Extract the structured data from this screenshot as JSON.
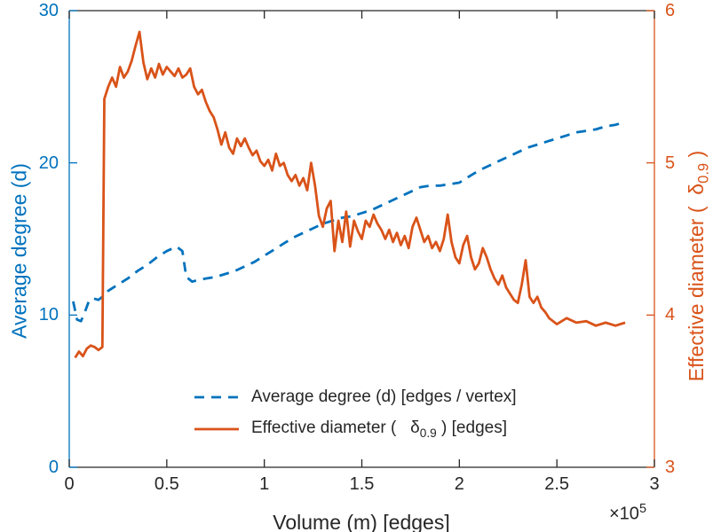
{
  "chart_data": {
    "type": "line",
    "title": "",
    "xlabel": "Volume (m) [edges]",
    "x_offset_parts": [
      {
        "t": "×10"
      },
      {
        "t": "5",
        "sup": true
      }
    ],
    "xlim": [
      0,
      3
    ],
    "x_ticks": [
      0,
      0.5,
      1,
      1.5,
      2,
      2.5,
      3
    ],
    "x_tick_labels": [
      "0",
      "0.5",
      "1",
      "1.5",
      "2",
      "2.5",
      "3"
    ],
    "grid": false,
    "frame_color": "#262626",
    "left_axis": {
      "label": "Average degree (d)",
      "color": "#0072BD",
      "ylim": [
        0,
        30
      ],
      "ticks": [
        0,
        10,
        20,
        30
      ],
      "tick_labels": [
        "0",
        "10",
        "20",
        "30"
      ]
    },
    "right_axis": {
      "label_parts": [
        {
          "t": "Effective diameter (  "
        },
        {
          "t": "δ"
        },
        {
          "t": "0.9",
          "sub": true
        },
        {
          "t": " )"
        }
      ],
      "color": "#D95319",
      "ylim": [
        3,
        6
      ],
      "ticks": [
        3,
        4,
        5,
        6
      ],
      "tick_labels": [
        "3",
        "4",
        "5",
        "6"
      ]
    },
    "series": [
      {
        "id": "average-degree",
        "name": "Average degree (d) [edges / vertex]",
        "axis": "left",
        "style": "dashed",
        "color": "#0072BD",
        "points": [
          [
            0.02,
            10.9
          ],
          [
            0.04,
            9.7
          ],
          [
            0.06,
            9.6
          ],
          [
            0.08,
            10.2
          ],
          [
            0.1,
            10.9
          ],
          [
            0.12,
            11.1
          ],
          [
            0.15,
            11.0
          ],
          [
            0.18,
            11.3
          ],
          [
            0.2,
            11.6
          ],
          [
            0.25,
            12.0
          ],
          [
            0.3,
            12.4
          ],
          [
            0.35,
            12.9
          ],
          [
            0.4,
            13.3
          ],
          [
            0.45,
            13.8
          ],
          [
            0.5,
            14.2
          ],
          [
            0.55,
            14.5
          ],
          [
            0.58,
            14.2
          ],
          [
            0.6,
            12.5
          ],
          [
            0.63,
            12.2
          ],
          [
            0.66,
            12.3
          ],
          [
            0.7,
            12.4
          ],
          [
            0.75,
            12.5
          ],
          [
            0.8,
            12.7
          ],
          [
            0.85,
            12.9
          ],
          [
            0.9,
            13.2
          ],
          [
            0.95,
            13.5
          ],
          [
            1.0,
            13.9
          ],
          [
            1.05,
            14.3
          ],
          [
            1.1,
            14.7
          ],
          [
            1.15,
            15.1
          ],
          [
            1.2,
            15.4
          ],
          [
            1.25,
            15.7
          ],
          [
            1.3,
            16.0
          ],
          [
            1.35,
            16.2
          ],
          [
            1.4,
            16.4
          ],
          [
            1.45,
            16.5
          ],
          [
            1.5,
            16.7
          ],
          [
            1.55,
            16.9
          ],
          [
            1.6,
            17.2
          ],
          [
            1.65,
            17.5
          ],
          [
            1.7,
            17.8
          ],
          [
            1.75,
            18.1
          ],
          [
            1.8,
            18.4
          ],
          [
            1.85,
            18.5
          ],
          [
            1.9,
            18.5
          ],
          [
            1.95,
            18.6
          ],
          [
            2.0,
            18.7
          ],
          [
            2.05,
            19.1
          ],
          [
            2.1,
            19.5
          ],
          [
            2.15,
            19.8
          ],
          [
            2.2,
            20.1
          ],
          [
            2.25,
            20.4
          ],
          [
            2.3,
            20.7
          ],
          [
            2.35,
            21.0
          ],
          [
            2.4,
            21.2
          ],
          [
            2.45,
            21.4
          ],
          [
            2.5,
            21.6
          ],
          [
            2.55,
            21.8
          ],
          [
            2.6,
            22.0
          ],
          [
            2.65,
            22.1
          ],
          [
            2.7,
            22.2
          ],
          [
            2.75,
            22.4
          ],
          [
            2.8,
            22.5
          ],
          [
            2.85,
            22.7
          ]
        ]
      },
      {
        "id": "effective-diameter",
        "name": "Effective diameter ( δ0.9 ) [edges]",
        "axis": "right",
        "style": "solid",
        "color": "#D95319",
        "points": [
          [
            0.03,
            3.72
          ],
          [
            0.05,
            3.76
          ],
          [
            0.07,
            3.73
          ],
          [
            0.09,
            3.78
          ],
          [
            0.11,
            3.8
          ],
          [
            0.13,
            3.79
          ],
          [
            0.15,
            3.77
          ],
          [
            0.17,
            3.79
          ],
          [
            0.18,
            5.42
          ],
          [
            0.2,
            5.5
          ],
          [
            0.22,
            5.56
          ],
          [
            0.24,
            5.5
          ],
          [
            0.26,
            5.63
          ],
          [
            0.28,
            5.56
          ],
          [
            0.3,
            5.6
          ],
          [
            0.32,
            5.67
          ],
          [
            0.34,
            5.77
          ],
          [
            0.36,
            5.86
          ],
          [
            0.38,
            5.66
          ],
          [
            0.4,
            5.55
          ],
          [
            0.42,
            5.62
          ],
          [
            0.44,
            5.56
          ],
          [
            0.46,
            5.65
          ],
          [
            0.48,
            5.58
          ],
          [
            0.5,
            5.63
          ],
          [
            0.52,
            5.6
          ],
          [
            0.54,
            5.57
          ],
          [
            0.56,
            5.62
          ],
          [
            0.58,
            5.56
          ],
          [
            0.6,
            5.58
          ],
          [
            0.62,
            5.62
          ],
          [
            0.64,
            5.5
          ],
          [
            0.66,
            5.45
          ],
          [
            0.68,
            5.48
          ],
          [
            0.7,
            5.4
          ],
          [
            0.72,
            5.34
          ],
          [
            0.74,
            5.3
          ],
          [
            0.76,
            5.22
          ],
          [
            0.78,
            5.12
          ],
          [
            0.8,
            5.2
          ],
          [
            0.82,
            5.1
          ],
          [
            0.84,
            5.06
          ],
          [
            0.86,
            5.16
          ],
          [
            0.88,
            5.11
          ],
          [
            0.9,
            5.16
          ],
          [
            0.92,
            5.1
          ],
          [
            0.94,
            5.05
          ],
          [
            0.96,
            5.08
          ],
          [
            0.98,
            5.01
          ],
          [
            1.0,
            4.98
          ],
          [
            1.02,
            5.02
          ],
          [
            1.04,
            4.95
          ],
          [
            1.06,
            5.06
          ],
          [
            1.08,
            4.98
          ],
          [
            1.1,
            5.0
          ],
          [
            1.12,
            4.92
          ],
          [
            1.14,
            4.88
          ],
          [
            1.16,
            4.92
          ],
          [
            1.18,
            4.85
          ],
          [
            1.2,
            4.9
          ],
          [
            1.22,
            4.82
          ],
          [
            1.24,
            5.0
          ],
          [
            1.26,
            4.85
          ],
          [
            1.28,
            4.65
          ],
          [
            1.3,
            4.58
          ],
          [
            1.32,
            4.7
          ],
          [
            1.34,
            4.75
          ],
          [
            1.36,
            4.42
          ],
          [
            1.38,
            4.62
          ],
          [
            1.4,
            4.48
          ],
          [
            1.42,
            4.68
          ],
          [
            1.44,
            4.45
          ],
          [
            1.46,
            4.62
          ],
          [
            1.48,
            4.55
          ],
          [
            1.5,
            4.5
          ],
          [
            1.52,
            4.62
          ],
          [
            1.54,
            4.58
          ],
          [
            1.56,
            4.66
          ],
          [
            1.58,
            4.6
          ],
          [
            1.6,
            4.56
          ],
          [
            1.62,
            4.5
          ],
          [
            1.64,
            4.56
          ],
          [
            1.66,
            4.48
          ],
          [
            1.68,
            4.54
          ],
          [
            1.7,
            4.46
          ],
          [
            1.72,
            4.52
          ],
          [
            1.74,
            4.44
          ],
          [
            1.76,
            4.58
          ],
          [
            1.78,
            4.64
          ],
          [
            1.8,
            4.56
          ],
          [
            1.82,
            4.48
          ],
          [
            1.84,
            4.52
          ],
          [
            1.86,
            4.44
          ],
          [
            1.88,
            4.48
          ],
          [
            1.9,
            4.42
          ],
          [
            1.92,
            4.5
          ],
          [
            1.94,
            4.66
          ],
          [
            1.96,
            4.48
          ],
          [
            1.98,
            4.38
          ],
          [
            2.0,
            4.34
          ],
          [
            2.02,
            4.46
          ],
          [
            2.04,
            4.52
          ],
          [
            2.06,
            4.38
          ],
          [
            2.08,
            4.3
          ],
          [
            2.1,
            4.34
          ],
          [
            2.12,
            4.44
          ],
          [
            2.14,
            4.38
          ],
          [
            2.16,
            4.3
          ],
          [
            2.18,
            4.24
          ],
          [
            2.2,
            4.2
          ],
          [
            2.22,
            4.26
          ],
          [
            2.24,
            4.18
          ],
          [
            2.26,
            4.14
          ],
          [
            2.28,
            4.1
          ],
          [
            2.3,
            4.08
          ],
          [
            2.32,
            4.2
          ],
          [
            2.34,
            4.36
          ],
          [
            2.36,
            4.12
          ],
          [
            2.38,
            4.08
          ],
          [
            2.4,
            4.12
          ],
          [
            2.42,
            4.05
          ],
          [
            2.44,
            4.02
          ],
          [
            2.46,
            3.98
          ],
          [
            2.48,
            3.96
          ],
          [
            2.5,
            3.94
          ],
          [
            2.55,
            3.98
          ],
          [
            2.6,
            3.95
          ],
          [
            2.65,
            3.96
          ],
          [
            2.7,
            3.93
          ],
          [
            2.75,
            3.95
          ],
          [
            2.8,
            3.93
          ],
          [
            2.85,
            3.95
          ]
        ]
      }
    ],
    "legend": {
      "position": "south-inside",
      "entries": [
        {
          "id": "average-degree",
          "style": "dashed",
          "color": "#0072BD",
          "label_parts": [
            {
              "t": "Average degree (d) [edges / vertex]"
            }
          ]
        },
        {
          "id": "effective-diameter",
          "style": "solid",
          "color": "#D95319",
          "label_parts": [
            {
              "t": "Effective diameter (   "
            },
            {
              "t": "δ"
            },
            {
              "t": "0.9",
              "sub": true
            },
            {
              "t": " ) [edges]"
            }
          ]
        }
      ]
    }
  }
}
